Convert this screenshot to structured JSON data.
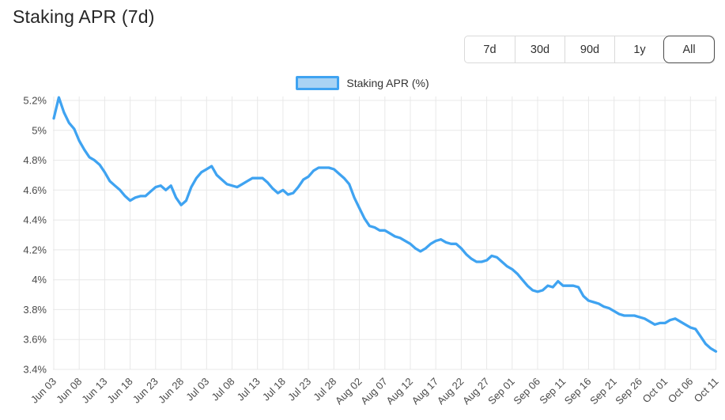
{
  "header": {
    "title": "Staking APR (7d)"
  },
  "time_range": {
    "buttons": [
      {
        "label": "7d",
        "active": false
      },
      {
        "label": "30d",
        "active": false
      },
      {
        "label": "90d",
        "active": false
      },
      {
        "label": "1y",
        "active": false
      },
      {
        "label": "All",
        "active": true
      }
    ]
  },
  "legend": {
    "label": "Staking APR (%)"
  },
  "colors": {
    "line": "#3fa3f1",
    "legend_fill": "#a9d3f4",
    "grid": "#e8e8e8",
    "axis_text": "#4a4a4a",
    "title_text": "#262626",
    "button_border": "#d9d9d9",
    "button_active_border": "#4a4a4a"
  },
  "chart_data": {
    "type": "line",
    "title": "Staking APR (7d)",
    "legend_entries": [
      "Staking APR (%)"
    ],
    "legend_position": "top-center",
    "grid": true,
    "ylim": [
      3.4,
      5.2
    ],
    "y_tick_values": [
      5.2,
      5.0,
      4.8,
      4.6,
      4.4,
      4.2,
      4.0,
      3.8,
      3.6,
      3.4
    ],
    "y_tick_labels": [
      "5.2%",
      "5%",
      "4.8%",
      "4.6%",
      "4.4%",
      "4.2%",
      "4%",
      "3.8%",
      "3.6%",
      "3.4%"
    ],
    "x_tick_labels": [
      "Jun 03",
      "Jun 08",
      "Jun 13",
      "Jun 18",
      "Jun 23",
      "Jun 28",
      "Jul 03",
      "Jul 08",
      "Jul 13",
      "Jul 18",
      "Jul 23",
      "Jul 28",
      "Aug 02",
      "Aug 07",
      "Aug 12",
      "Aug 17",
      "Aug 22",
      "Aug 27",
      "Sep 01",
      "Sep 06",
      "Sep 11",
      "Sep 16",
      "Sep 21",
      "Sep 26",
      "Oct 01",
      "Oct 06",
      "Oct 11"
    ],
    "x_tick_step_points": 5,
    "x_start_label": "Jun 03",
    "x_end_label": "Oct 11",
    "points_per_day": 1,
    "series": [
      {
        "name": "Staking APR (%)",
        "unit": "%",
        "values": [
          5.08,
          5.22,
          5.12,
          5.05,
          5.01,
          4.93,
          4.87,
          4.82,
          4.8,
          4.77,
          4.72,
          4.66,
          4.63,
          4.6,
          4.56,
          4.53,
          4.55,
          4.56,
          4.56,
          4.59,
          4.62,
          4.63,
          4.6,
          4.63,
          4.55,
          4.5,
          4.53,
          4.62,
          4.68,
          4.72,
          4.74,
          4.76,
          4.7,
          4.67,
          4.64,
          4.63,
          4.62,
          4.64,
          4.66,
          4.68,
          4.68,
          4.68,
          4.65,
          4.61,
          4.58,
          4.6,
          4.57,
          4.58,
          4.62,
          4.67,
          4.69,
          4.73,
          4.75,
          4.75,
          4.75,
          4.74,
          4.71,
          4.68,
          4.64,
          4.55,
          4.48,
          4.41,
          4.36,
          4.35,
          4.33,
          4.33,
          4.31,
          4.29,
          4.28,
          4.26,
          4.24,
          4.21,
          4.19,
          4.21,
          4.24,
          4.26,
          4.27,
          4.25,
          4.24,
          4.24,
          4.21,
          4.17,
          4.14,
          4.12,
          4.12,
          4.13,
          4.16,
          4.15,
          4.12,
          4.09,
          4.07,
          4.04,
          4.0,
          3.96,
          3.93,
          3.92,
          3.93,
          3.96,
          3.95,
          3.99,
          3.96,
          3.96,
          3.96,
          3.95,
          3.89,
          3.86,
          3.85,
          3.84,
          3.82,
          3.81,
          3.79,
          3.77,
          3.76,
          3.76,
          3.76,
          3.75,
          3.74,
          3.72,
          3.7,
          3.71,
          3.71,
          3.73,
          3.74,
          3.72,
          3.7,
          3.68,
          3.67,
          3.62,
          3.57,
          3.54,
          3.52
        ]
      }
    ]
  }
}
